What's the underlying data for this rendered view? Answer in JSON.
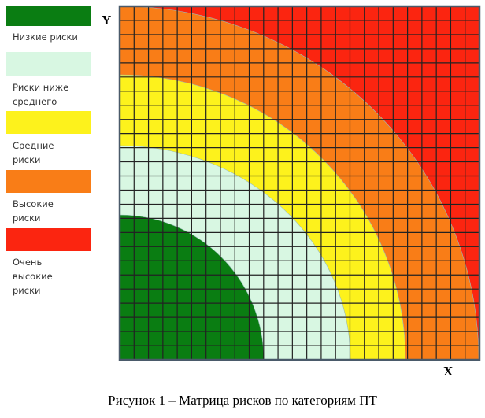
{
  "legend": [
    {
      "label": "Низкие риски",
      "color": "#0a7d12"
    },
    {
      "label": "Риски ниже\nсреднего",
      "color": "#d8f7e2"
    },
    {
      "label": "Средние\nриски",
      "color": "#fdf21c"
    },
    {
      "label": "Высокие\nриски",
      "color": "#f97d17"
    },
    {
      "label": "Очень\nвысокие\nриски",
      "color": "#fb2510"
    }
  ],
  "axes": {
    "x": "X",
    "y": "Y"
  },
  "grid": {
    "rows": 25,
    "cols": 25
  },
  "caption": "Рисунок 1 – Матрица рисков по категориям ПТ"
}
